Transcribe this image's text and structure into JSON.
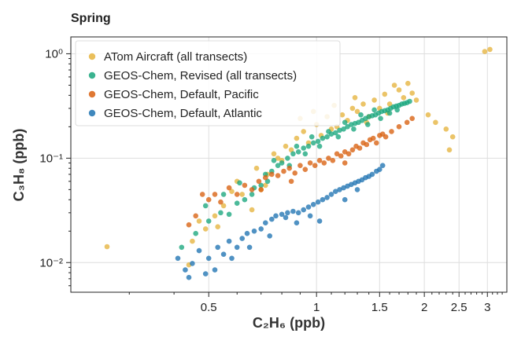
{
  "chart_data": {
    "type": "scatter",
    "title": "Spring",
    "xlabel": "C₂H₆ (ppb)",
    "ylabel": "C₃H₈ (ppb)",
    "xscale": "log",
    "yscale": "log",
    "xlim": [
      0.206,
      3.4
    ],
    "ylim": [
      0.0052,
      1.45
    ],
    "grid": true,
    "legend": "top-left",
    "x_ticks": [
      {
        "value": 0.5,
        "label": "0.5"
      },
      {
        "value": 1,
        "label": "1"
      },
      {
        "value": 1.5,
        "label": "1.5"
      },
      {
        "value": 2,
        "label": "2"
      },
      {
        "value": 2.5,
        "label": "2.5"
      },
      {
        "value": 3,
        "label": "3"
      }
    ],
    "y_ticks": [
      {
        "value": 0.01,
        "label": "10⁻²"
      },
      {
        "value": 0.1,
        "label": "10⁻¹"
      },
      {
        "value": 1,
        "label": "10⁰"
      }
    ],
    "series": [
      {
        "name": "ATom Aircraft (all transects)",
        "color": "#E6B43E",
        "points": [
          [
            0.26,
            0.0142
          ],
          [
            0.44,
            0.0095
          ],
          [
            0.45,
            0.016
          ],
          [
            0.47,
            0.025
          ],
          [
            0.49,
            0.021
          ],
          [
            0.52,
            0.028
          ],
          [
            0.55,
            0.035
          ],
          [
            0.58,
            0.048
          ],
          [
            0.62,
            0.045
          ],
          [
            0.66,
            0.032
          ],
          [
            0.7,
            0.05
          ],
          [
            0.73,
            0.07
          ],
          [
            0.76,
            0.11
          ],
          [
            0.8,
            0.095
          ],
          [
            0.82,
            0.13
          ],
          [
            0.85,
            0.12
          ],
          [
            0.88,
            0.155
          ],
          [
            0.92,
            0.18
          ],
          [
            0.95,
            0.14
          ],
          [
            1.0,
            0.21
          ],
          [
            1.03,
            0.165
          ],
          [
            1.07,
            0.25
          ],
          [
            1.1,
            0.19
          ],
          [
            1.14,
            0.2
          ],
          [
            1.18,
            0.26
          ],
          [
            1.22,
            0.23
          ],
          [
            1.26,
            0.3
          ],
          [
            1.3,
            0.28
          ],
          [
            1.35,
            0.33
          ],
          [
            1.4,
            0.25
          ],
          [
            1.45,
            0.36
          ],
          [
            1.5,
            0.3
          ],
          [
            1.55,
            0.41
          ],
          [
            1.6,
            0.33
          ],
          [
            1.65,
            0.5
          ],
          [
            1.7,
            0.45
          ],
          [
            1.75,
            0.38
          ],
          [
            1.8,
            0.52
          ],
          [
            1.85,
            0.42
          ],
          [
            1.9,
            0.36
          ],
          [
            2.05,
            0.26
          ],
          [
            2.15,
            0.22
          ],
          [
            2.3,
            0.19
          ],
          [
            2.4,
            0.16
          ],
          [
            2.35,
            0.12
          ],
          [
            2.95,
            1.05
          ],
          [
            3.05,
            1.1
          ],
          [
            0.9,
            0.24
          ],
          [
            0.98,
            0.28
          ],
          [
            1.12,
            0.32
          ],
          [
            1.28,
            0.38
          ],
          [
            0.6,
            0.06
          ],
          [
            0.68,
            0.08
          ],
          [
            0.78,
            0.1
          ],
          [
            1.38,
            0.22
          ],
          [
            1.58,
            0.27
          ],
          [
            0.53,
            0.022
          ],
          [
            0.72,
            0.055
          ]
        ]
      },
      {
        "name": "GEOS-Chem, Revised (all transects)",
        "color": "#19A67D",
        "points": [
          [
            0.42,
            0.014
          ],
          [
            0.46,
            0.019
          ],
          [
            0.5,
            0.025
          ],
          [
            0.54,
            0.03
          ],
          [
            0.57,
            0.029
          ],
          [
            0.6,
            0.037
          ],
          [
            0.63,
            0.04
          ],
          [
            0.66,
            0.045
          ],
          [
            0.7,
            0.055
          ],
          [
            0.73,
            0.06
          ],
          [
            0.75,
            0.075
          ],
          [
            0.78,
            0.085
          ],
          [
            0.8,
            0.09
          ],
          [
            0.83,
            0.1
          ],
          [
            0.86,
            0.11
          ],
          [
            0.89,
            0.115
          ],
          [
            0.92,
            0.125
          ],
          [
            0.95,
            0.13
          ],
          [
            0.98,
            0.14
          ],
          [
            1.01,
            0.145
          ],
          [
            1.04,
            0.155
          ],
          [
            1.07,
            0.16
          ],
          [
            1.1,
            0.17
          ],
          [
            1.13,
            0.175
          ],
          [
            1.16,
            0.185
          ],
          [
            1.19,
            0.19
          ],
          [
            1.22,
            0.2
          ],
          [
            1.25,
            0.21
          ],
          [
            1.28,
            0.215
          ],
          [
            1.31,
            0.22
          ],
          [
            1.34,
            0.23
          ],
          [
            1.37,
            0.24
          ],
          [
            1.4,
            0.25
          ],
          [
            1.43,
            0.255
          ],
          [
            1.46,
            0.26
          ],
          [
            1.49,
            0.27
          ],
          [
            1.52,
            0.28
          ],
          [
            1.55,
            0.285
          ],
          [
            1.58,
            0.29
          ],
          [
            1.61,
            0.3
          ],
          [
            1.64,
            0.31
          ],
          [
            1.67,
            0.315
          ],
          [
            1.7,
            0.32
          ],
          [
            1.73,
            0.33
          ],
          [
            1.76,
            0.335
          ],
          [
            1.79,
            0.34
          ],
          [
            1.82,
            0.35
          ],
          [
            0.88,
            0.13
          ],
          [
            0.93,
            0.11
          ],
          [
            0.97,
            0.16
          ],
          [
            1.02,
            0.13
          ],
          [
            1.08,
            0.18
          ],
          [
            1.15,
            0.16
          ],
          [
            1.2,
            0.22
          ],
          [
            1.27,
            0.19
          ],
          [
            1.33,
            0.26
          ],
          [
            1.39,
            0.21
          ],
          [
            1.45,
            0.29
          ],
          [
            1.51,
            0.24
          ],
          [
            1.6,
            0.27
          ],
          [
            1.68,
            0.29
          ],
          [
            0.55,
            0.045
          ],
          [
            0.61,
            0.058
          ],
          [
            0.67,
            0.052
          ],
          [
            0.72,
            0.07
          ],
          [
            0.76,
            0.095
          ],
          [
            0.84,
            0.085
          ],
          [
            0.49,
            0.035
          ]
        ]
      },
      {
        "name": "GEOS-Chem, Default, Pacific",
        "color": "#D9600F",
        "points": [
          [
            0.44,
            0.023
          ],
          [
            0.46,
            0.028
          ],
          [
            0.48,
            0.045
          ],
          [
            0.5,
            0.04
          ],
          [
            0.52,
            0.045
          ],
          [
            0.54,
            0.038
          ],
          [
            0.57,
            0.052
          ],
          [
            0.6,
            0.045
          ],
          [
            0.63,
            0.055
          ],
          [
            0.66,
            0.05
          ],
          [
            0.69,
            0.06
          ],
          [
            0.72,
            0.065
          ],
          [
            0.75,
            0.07
          ],
          [
            0.78,
            0.068
          ],
          [
            0.81,
            0.075
          ],
          [
            0.84,
            0.08
          ],
          [
            0.87,
            0.072
          ],
          [
            0.9,
            0.085
          ],
          [
            0.93,
            0.078
          ],
          [
            0.96,
            0.09
          ],
          [
            0.99,
            0.085
          ],
          [
            1.02,
            0.095
          ],
          [
            1.05,
            0.09
          ],
          [
            1.08,
            0.1
          ],
          [
            1.11,
            0.095
          ],
          [
            1.14,
            0.11
          ],
          [
            1.17,
            0.105
          ],
          [
            1.2,
            0.115
          ],
          [
            1.23,
            0.11
          ],
          [
            1.26,
            0.12
          ],
          [
            1.29,
            0.13
          ],
          [
            1.32,
            0.125
          ],
          [
            1.35,
            0.14
          ],
          [
            1.38,
            0.135
          ],
          [
            1.41,
            0.15
          ],
          [
            1.44,
            0.155
          ],
          [
            1.47,
            0.14
          ],
          [
            1.5,
            0.165
          ],
          [
            1.53,
            0.17
          ],
          [
            1.56,
            0.16
          ],
          [
            1.62,
            0.18
          ],
          [
            1.7,
            0.2
          ],
          [
            1.79,
            0.22
          ],
          [
            1.85,
            0.24
          ],
          [
            1.2,
            0.09
          ],
          [
            0.85,
            0.06
          ],
          [
            0.7,
            0.05
          ]
        ]
      },
      {
        "name": "GEOS-Chem, Default, Atlantic",
        "color": "#1F73B2",
        "points": [
          [
            0.41,
            0.011
          ],
          [
            0.43,
            0.0085
          ],
          [
            0.44,
            0.0072
          ],
          [
            0.45,
            0.0098
          ],
          [
            0.47,
            0.013
          ],
          [
            0.49,
            0.0078
          ],
          [
            0.5,
            0.011
          ],
          [
            0.52,
            0.0085
          ],
          [
            0.53,
            0.014
          ],
          [
            0.55,
            0.012
          ],
          [
            0.57,
            0.016
          ],
          [
            0.6,
            0.014
          ],
          [
            0.62,
            0.017
          ],
          [
            0.64,
            0.019
          ],
          [
            0.67,
            0.02
          ],
          [
            0.7,
            0.021
          ],
          [
            0.72,
            0.024
          ],
          [
            0.75,
            0.026
          ],
          [
            0.77,
            0.028
          ],
          [
            0.8,
            0.029
          ],
          [
            0.83,
            0.03
          ],
          [
            0.86,
            0.031
          ],
          [
            0.89,
            0.03
          ],
          [
            0.92,
            0.032
          ],
          [
            0.95,
            0.034
          ],
          [
            0.98,
            0.036
          ],
          [
            1.01,
            0.038
          ],
          [
            1.04,
            0.04
          ],
          [
            1.07,
            0.042
          ],
          [
            1.1,
            0.045
          ],
          [
            1.13,
            0.048
          ],
          [
            1.16,
            0.05
          ],
          [
            1.19,
            0.052
          ],
          [
            1.22,
            0.054
          ],
          [
            1.25,
            0.056
          ],
          [
            1.28,
            0.058
          ],
          [
            1.31,
            0.06
          ],
          [
            1.34,
            0.062
          ],
          [
            1.37,
            0.065
          ],
          [
            1.4,
            0.067
          ],
          [
            1.43,
            0.07
          ],
          [
            1.47,
            0.075
          ],
          [
            1.5,
            0.078
          ],
          [
            1.53,
            0.085
          ],
          [
            0.96,
            0.028
          ],
          [
            1.02,
            0.025
          ],
          [
            0.88,
            0.024
          ],
          [
            0.82,
            0.027
          ],
          [
            0.58,
            0.011
          ],
          [
            0.65,
            0.014
          ],
          [
            0.74,
            0.018
          ],
          [
            1.2,
            0.04
          ],
          [
            1.3,
            0.05
          ]
        ]
      }
    ]
  }
}
